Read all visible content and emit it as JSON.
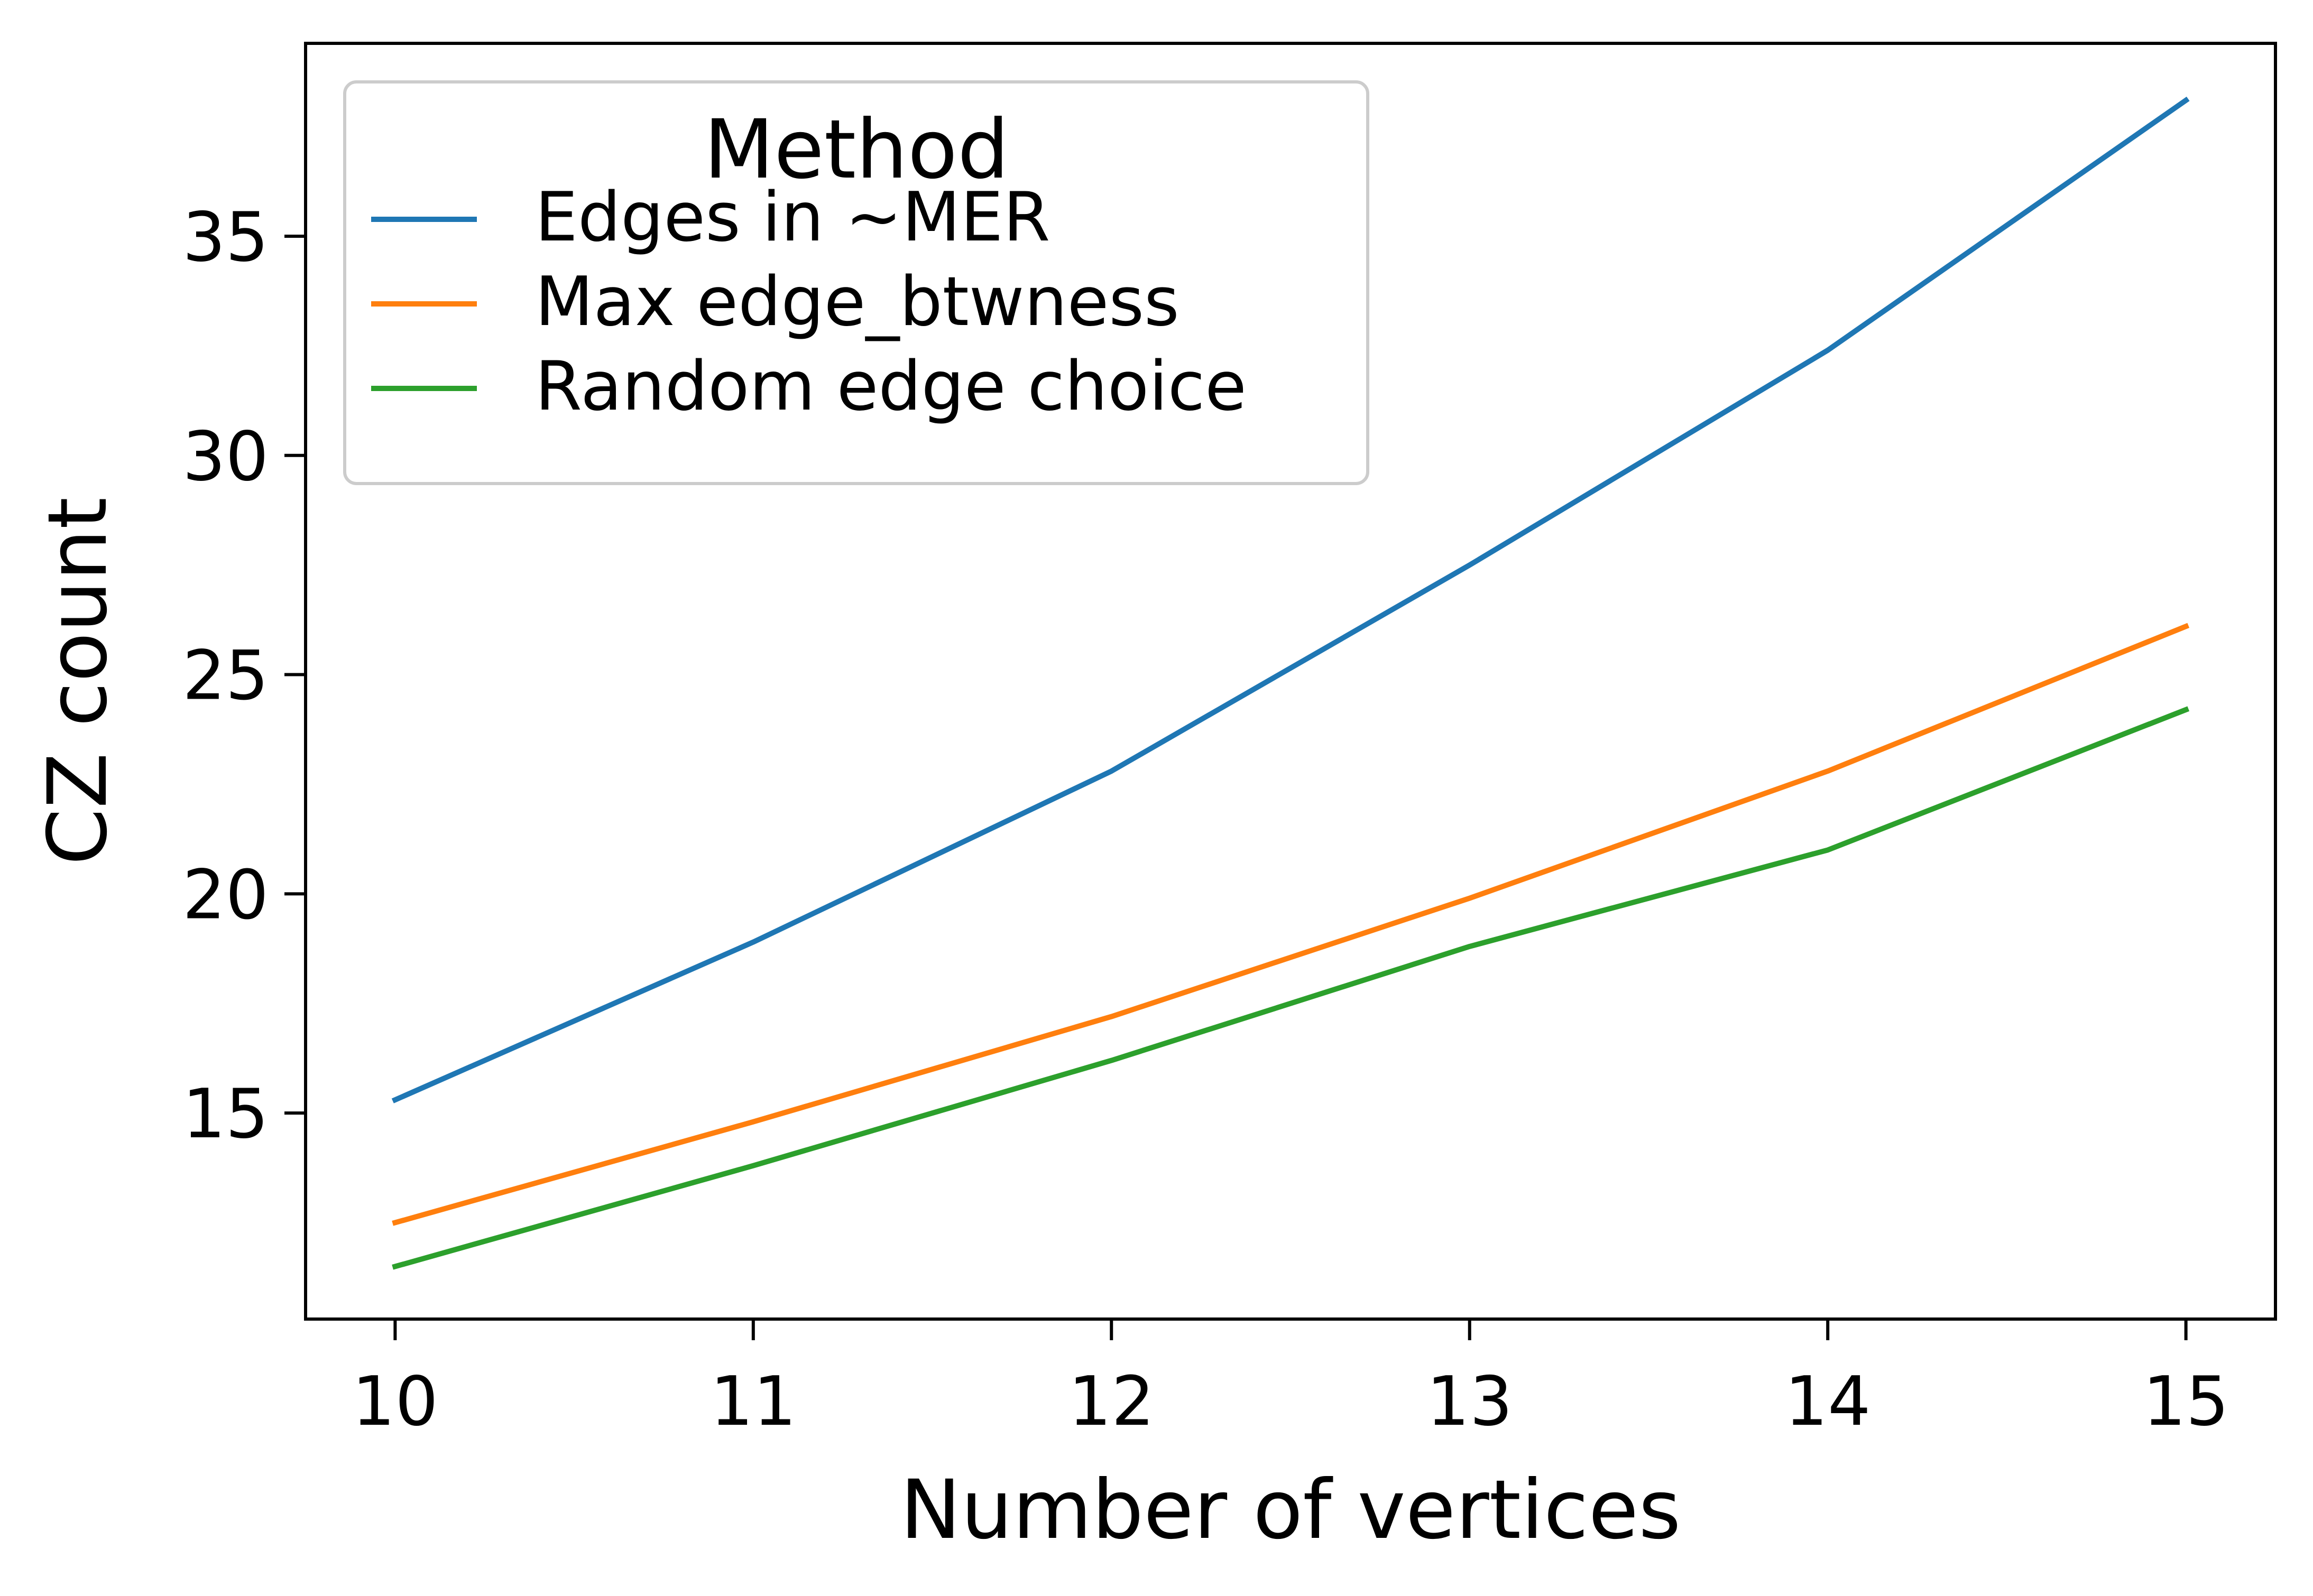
{
  "chart_data": {
    "type": "line",
    "xlabel": "Number of vertices",
    "ylabel": "CZ count",
    "x": [
      10,
      11,
      12,
      13,
      14,
      15
    ],
    "xticks": [
      10,
      11,
      12,
      13,
      14,
      15
    ],
    "yticks": [
      15,
      20,
      25,
      30,
      35
    ],
    "xlim": [
      9.75,
      15.25
    ],
    "ylim": [
      10.3,
      39.4
    ],
    "grid": false,
    "legend": {
      "title": "Method",
      "placement": "top-left"
    },
    "series": [
      {
        "name": "Edges in ~MER",
        "color": "#1f77b4",
        "values": [
          15.3,
          18.9,
          22.8,
          27.5,
          32.4,
          38.1
        ]
      },
      {
        "name": "Max edge_btwness",
        "color": "#ff7f0e",
        "values": [
          12.5,
          14.8,
          17.2,
          19.9,
          22.8,
          26.1
        ]
      },
      {
        "name": "Random edge choice",
        "color": "#2ca02c",
        "values": [
          11.5,
          13.8,
          16.2,
          18.8,
          21.0,
          24.2
        ]
      }
    ]
  }
}
